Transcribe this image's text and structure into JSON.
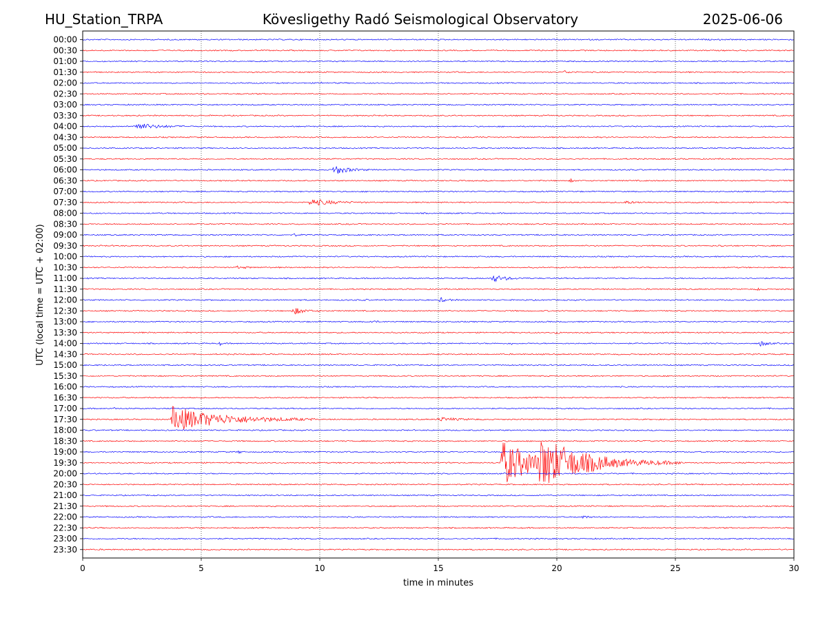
{
  "header": {
    "station": "HU_Station_TRPA",
    "observatory": "Kövesligethy Radó Seismological Observatory",
    "date": "2025-06-06"
  },
  "chart_data": {
    "type": "line",
    "title": "Kövesligethy Radó Seismological Observatory",
    "xlabel": "time in minutes",
    "ylabel": "UTC (local time = UTC + 02:00)",
    "xlim": [
      0,
      30
    ],
    "x_ticks": [
      "0",
      "5",
      "10",
      "15",
      "20",
      "25",
      "30"
    ],
    "vertical_grid": "dotted at 5, 10, 15, 20, 25",
    "rows": [
      "00:00",
      "00:30",
      "01:00",
      "01:30",
      "02:00",
      "02:30",
      "03:00",
      "03:30",
      "04:00",
      "04:30",
      "05:00",
      "05:30",
      "06:00",
      "06:30",
      "07:00",
      "07:30",
      "08:00",
      "08:30",
      "09:00",
      "09:30",
      "10:00",
      "10:30",
      "11:00",
      "11:30",
      "12:00",
      "12:30",
      "13:00",
      "13:30",
      "14:00",
      "14:30",
      "15:00",
      "15:30",
      "16:00",
      "16:30",
      "17:00",
      "17:30",
      "18:00",
      "18:30",
      "19:00",
      "19:30",
      "20:00",
      "20:30",
      "21:00",
      "21:30",
      "22:00",
      "22:30",
      "23:00",
      "23:30"
    ],
    "trace_colors": [
      "#0000ff",
      "#ff0000"
    ],
    "events": [
      {
        "row": "01:30",
        "minute": 20.3,
        "amplitude": 2,
        "duration": 0.6
      },
      {
        "row": "02:00",
        "minute": 10.1,
        "amplitude": 1.5,
        "duration": 0.3
      },
      {
        "row": "04:00",
        "minute": 2.2,
        "amplitude": 5,
        "duration": 2.5
      },
      {
        "row": "04:30",
        "minute": 16.7,
        "amplitude": 1.5,
        "duration": 0.4
      },
      {
        "row": "06:00",
        "minute": 10.6,
        "amplitude": 7,
        "duration": 1.5
      },
      {
        "row": "06:30",
        "minute": 20.6,
        "amplitude": 2,
        "duration": 0.3
      },
      {
        "row": "07:30",
        "minute": 9.6,
        "amplitude": 5,
        "duration": 2.5
      },
      {
        "row": "07:30",
        "minute": 22.8,
        "amplitude": 2,
        "duration": 1.5
      },
      {
        "row": "09:00",
        "minute": 8.9,
        "amplitude": 2,
        "duration": 0.4
      },
      {
        "row": "09:30",
        "minute": 26.9,
        "amplitude": 2,
        "duration": 0.3
      },
      {
        "row": "10:30",
        "minute": 6.5,
        "amplitude": 1.5,
        "duration": 1.5
      },
      {
        "row": "11:00",
        "minute": 17.3,
        "amplitude": 5,
        "duration": 1.5
      },
      {
        "row": "11:30",
        "minute": 28.5,
        "amplitude": 2,
        "duration": 0.3
      },
      {
        "row": "12:00",
        "minute": 15.1,
        "amplitude": 3,
        "duration": 0.8
      },
      {
        "row": "12:00",
        "minute": 11.9,
        "amplitude": 2,
        "duration": 0.2
      },
      {
        "row": "12:30",
        "minute": 8.9,
        "amplitude": 5,
        "duration": 1.2
      },
      {
        "row": "13:00",
        "minute": 12.1,
        "amplitude": 2,
        "duration": 0.6
      },
      {
        "row": "13:30",
        "minute": 20.0,
        "amplitude": 2.5,
        "duration": 0.2
      },
      {
        "row": "14:00",
        "minute": 5.8,
        "amplitude": 2,
        "duration": 0.2
      },
      {
        "row": "14:00",
        "minute": 18.1,
        "amplitude": 2,
        "duration": 0.2
      },
      {
        "row": "14:00",
        "minute": 28.6,
        "amplitude": 4,
        "duration": 0.8
      },
      {
        "row": "17:00",
        "minute": 1.3,
        "amplitude": 1.5,
        "duration": 0.3
      },
      {
        "row": "17:30",
        "minute": 3.8,
        "amplitude": 18,
        "duration": 6.0
      },
      {
        "row": "17:30",
        "minute": 15.0,
        "amplitude": 3,
        "duration": 2.0
      },
      {
        "row": "19:00",
        "minute": 6.6,
        "amplitude": 3,
        "duration": 0.2
      },
      {
        "row": "19:30",
        "minute": 17.7,
        "amplitude": 32,
        "duration": 4.5
      },
      {
        "row": "19:30",
        "minute": 19.3,
        "amplitude": 28,
        "duration": 6.0
      },
      {
        "row": "22:00",
        "minute": 21.1,
        "amplitude": 2,
        "duration": 0.6
      }
    ]
  }
}
